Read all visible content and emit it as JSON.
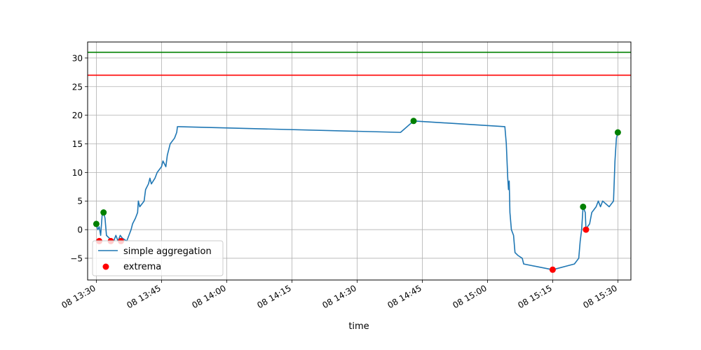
{
  "chart_data": {
    "type": "line",
    "title": "",
    "xlabel": "time",
    "ylabel": "",
    "xlim": [
      "08 13:28",
      "08 15:33"
    ],
    "ylim": [
      -8.8,
      32.8
    ],
    "grid": true,
    "legend_position": "lower-left",
    "x_ticks": [
      "08 13:30",
      "08 13:45",
      "08 14:00",
      "08 14:15",
      "08 14:30",
      "08 14:45",
      "08 15:00",
      "08 15:15",
      "08 15:30"
    ],
    "y_ticks": [
      -5,
      0,
      5,
      10,
      15,
      20,
      25,
      30
    ],
    "horizontal_lines": [
      {
        "y": 31,
        "color": "#008000"
      },
      {
        "y": 27,
        "color": "#ff0000"
      }
    ],
    "series": [
      {
        "name": "simple aggregation",
        "color": "#1f77b4",
        "points": [
          [
            "08 13:30",
            1
          ],
          [
            "08 13:30:20",
            0
          ],
          [
            "08 13:30:40",
            0.5
          ],
          [
            "08 13:31",
            -1
          ],
          [
            "08 13:31:20",
            2.5
          ],
          [
            "08 13:31:40",
            3
          ],
          [
            "08 13:32",
            2
          ],
          [
            "08 13:32:20",
            -1
          ],
          [
            "08 13:33",
            -1.5
          ],
          [
            "08 13:34",
            -2
          ],
          [
            "08 13:34:30",
            -1
          ],
          [
            "08 13:35",
            -2
          ],
          [
            "08 13:35:30",
            -1
          ],
          [
            "08 13:36",
            -1.5
          ],
          [
            "08 13:37",
            -2
          ],
          [
            "08 13:37:30",
            -1
          ],
          [
            "08 13:38",
            0
          ],
          [
            "08 13:38:20",
            1
          ],
          [
            "08 13:39",
            2
          ],
          [
            "08 13:39:30",
            3
          ],
          [
            "08 13:39:40",
            5
          ],
          [
            "08 13:40",
            4
          ],
          [
            "08 13:41",
            5
          ],
          [
            "08 13:41:20",
            7
          ],
          [
            "08 13:42",
            8
          ],
          [
            "08 13:42:20",
            9
          ],
          [
            "08 13:42:40",
            8
          ],
          [
            "08 13:43:30",
            9
          ],
          [
            "08 13:44",
            10
          ],
          [
            "08 13:45",
            11
          ],
          [
            "08 13:45:20",
            12
          ],
          [
            "08 13:46",
            11
          ],
          [
            "08 13:46:20",
            13
          ],
          [
            "08 13:46:40",
            14
          ],
          [
            "08 13:47",
            15
          ],
          [
            "08 13:48",
            16
          ],
          [
            "08 13:48:30",
            17
          ],
          [
            "08 13:48:40",
            18
          ],
          [
            "08 14:40",
            17
          ],
          [
            "08 14:43",
            19
          ],
          [
            "08 15:04",
            18
          ],
          [
            "08 15:04:20",
            15
          ],
          [
            "08 15:04:40",
            9
          ],
          [
            "08 15:04:50",
            7
          ],
          [
            "08 15:05",
            8.5
          ],
          [
            "08 15:05:10",
            3
          ],
          [
            "08 15:05:30",
            0
          ],
          [
            "08 15:06",
            -1
          ],
          [
            "08 15:06:20",
            -4
          ],
          [
            "08 15:07",
            -4.5
          ],
          [
            "08 15:08",
            -5
          ],
          [
            "08 15:08:20",
            -6
          ],
          [
            "08 15:15",
            -7
          ],
          [
            "08 15:20",
            -6
          ],
          [
            "08 15:21",
            -5
          ],
          [
            "08 15:21:20",
            -2
          ],
          [
            "08 15:21:40",
            0
          ],
          [
            "08 15:22",
            4
          ],
          [
            "08 15:22:30",
            3
          ],
          [
            "08 15:22:40",
            0
          ],
          [
            "08 15:23",
            0.5
          ],
          [
            "08 15:23:30",
            1
          ],
          [
            "08 15:24",
            3
          ],
          [
            "08 15:24:30",
            3.5
          ],
          [
            "08 15:25",
            4
          ],
          [
            "08 15:25:30",
            5
          ],
          [
            "08 15:26",
            4
          ],
          [
            "08 15:26:30",
            5
          ],
          [
            "08 15:28",
            4
          ],
          [
            "08 15:29",
            5
          ],
          [
            "08 15:29:20",
            12
          ],
          [
            "08 15:29:40",
            16
          ],
          [
            "08 15:30",
            17
          ]
        ]
      },
      {
        "name": "extrema",
        "type": "scatter",
        "color": "#ff0000",
        "points": [
          [
            "08 13:30",
            1,
            "#008000"
          ],
          [
            "08 13:31:40",
            3,
            "#008000"
          ],
          [
            "08 13:30:40",
            -2,
            "#ff0000"
          ],
          [
            "08 13:33:20",
            -2,
            "#ff0000"
          ],
          [
            "08 13:35:40",
            -2,
            "#ff0000"
          ],
          [
            "08 14:43",
            19,
            "#008000"
          ],
          [
            "08 15:15",
            -7,
            "#ff0000"
          ],
          [
            "08 15:22",
            4,
            "#008000"
          ],
          [
            "08 15:22:40",
            0,
            "#ff0000"
          ],
          [
            "08 15:30",
            17,
            "#008000"
          ]
        ]
      }
    ]
  }
}
